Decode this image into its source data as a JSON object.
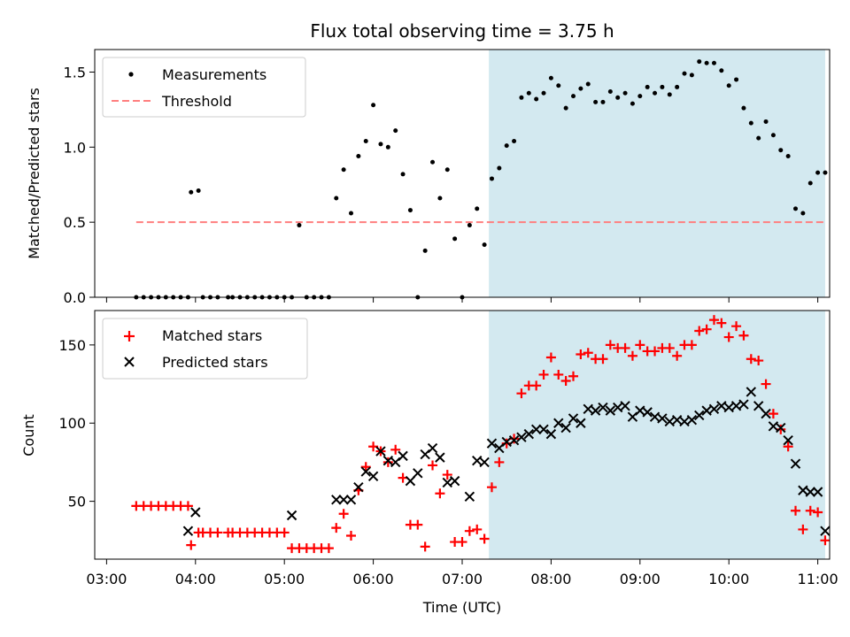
{
  "chart_data": [
    {
      "type": "scatter",
      "title": "Flux total observing time = 3.75 h",
      "xlabel": "",
      "ylabel": "Matched/Predicted stars",
      "ylim": [
        0,
        1.65
      ],
      "xlim": [
        "03:00",
        "11:30"
      ],
      "yticks": [
        "0.0",
        "0.5",
        "1.0",
        "1.5"
      ],
      "shaded_region": {
        "from": "07:18",
        "to": "11:05",
        "color": "#d3e9f0"
      },
      "legend": {
        "position": "top-left",
        "entries": [
          "Measurements",
          "Threshold"
        ]
      },
      "series": [
        {
          "name": "Measurements",
          "marker": "dot",
          "color": "#000000",
          "x": [
            "03:20",
            "03:25",
            "03:30",
            "03:35",
            "03:40",
            "03:45",
            "03:50",
            "03:55",
            "03:57",
            "04:02",
            "04:05",
            "04:10",
            "04:15",
            "04:22",
            "04:25",
            "04:30",
            "04:35",
            "04:40",
            "04:45",
            "04:50",
            "04:55",
            "05:00",
            "05:05",
            "05:10",
            "05:15",
            "05:20",
            "05:25",
            "05:30",
            "05:35",
            "05:40",
            "05:45",
            "05:50",
            "05:55",
            "06:00",
            "06:05",
            "06:10",
            "06:15",
            "06:20",
            "06:25",
            "06:30",
            "06:35",
            "06:40",
            "06:45",
            "06:50",
            "06:55",
            "07:00",
            "07:05",
            "07:10",
            "07:15",
            "07:20",
            "07:25",
            "07:30",
            "07:35",
            "07:40",
            "07:45",
            "07:50",
            "07:55",
            "08:00",
            "08:05",
            "08:10",
            "08:15",
            "08:20",
            "08:25",
            "08:30",
            "08:35",
            "08:40",
            "08:45",
            "08:50",
            "08:55",
            "09:00",
            "09:05",
            "09:10",
            "09:15",
            "09:20",
            "09:25",
            "09:30",
            "09:35",
            "09:40",
            "09:45",
            "09:50",
            "09:55",
            "10:00",
            "10:05",
            "10:10",
            "10:15",
            "10:20",
            "10:25",
            "10:30",
            "10:35",
            "10:40",
            "10:45",
            "10:50",
            "10:55",
            "11:00",
            "11:05"
          ],
          "y": [
            0.0,
            0.0,
            0.0,
            0.0,
            0.0,
            0.0,
            0.0,
            0.0,
            0.7,
            0.71,
            0.0,
            0.0,
            0.0,
            0.0,
            0.0,
            0.0,
            0.0,
            0.0,
            0.0,
            0.0,
            0.0,
            0.0,
            0.0,
            0.48,
            0.0,
            0.0,
            0.0,
            0.0,
            0.66,
            0.85,
            0.56,
            0.94,
            1.04,
            1.28,
            1.02,
            1.0,
            1.11,
            0.82,
            0.58,
            0.0,
            0.31,
            0.9,
            0.66,
            0.85,
            0.39,
            0.0,
            0.48,
            0.59,
            0.35,
            0.79,
            0.86,
            1.01,
            1.04,
            1.33,
            1.36,
            1.32,
            1.36,
            1.46,
            1.41,
            1.26,
            1.34,
            1.39,
            1.42,
            1.3,
            1.3,
            1.37,
            1.33,
            1.36,
            1.29,
            1.34,
            1.4,
            1.36,
            1.4,
            1.35,
            1.4,
            1.49,
            1.48,
            1.57,
            1.56,
            1.56,
            1.51,
            1.41,
            1.45,
            1.26,
            1.16,
            1.06,
            1.17,
            1.08,
            0.98,
            0.94,
            0.59,
            0.56,
            0.76,
            0.83,
            0.83
          ]
        },
        {
          "name": "Threshold",
          "marker": "dashed-line",
          "color": "#ff7f7f",
          "x": [
            "03:20",
            "11:05"
          ],
          "y": [
            0.5,
            0.5
          ]
        }
      ]
    },
    {
      "type": "scatter",
      "title": "",
      "xlabel": "Time (UTC)",
      "ylabel": "Count",
      "ylim": [
        13,
        172
      ],
      "xlim": [
        "03:00",
        "11:30"
      ],
      "xticks": [
        "03:00",
        "04:00",
        "05:00",
        "06:00",
        "07:00",
        "08:00",
        "09:00",
        "10:00",
        "11:00"
      ],
      "yticks": [
        "50",
        "100",
        "150"
      ],
      "shaded_region": {
        "from": "07:18",
        "to": "11:05",
        "color": "#d3e9f0"
      },
      "legend": {
        "position": "top-left",
        "entries": [
          "Matched stars",
          "Predicted stars"
        ]
      },
      "series": [
        {
          "name": "Matched stars",
          "marker": "plus",
          "color": "#ff0000",
          "x": [
            "03:20",
            "03:25",
            "03:30",
            "03:35",
            "03:40",
            "03:45",
            "03:50",
            "03:55",
            "03:57",
            "04:02",
            "04:05",
            "04:10",
            "04:15",
            "04:22",
            "04:25",
            "04:30",
            "04:35",
            "04:40",
            "04:45",
            "04:50",
            "04:55",
            "05:00",
            "05:05",
            "05:10",
            "05:15",
            "05:20",
            "05:25",
            "05:30",
            "05:35",
            "05:40",
            "05:45",
            "05:50",
            "05:55",
            "06:00",
            "06:05",
            "06:10",
            "06:15",
            "06:20",
            "06:25",
            "06:30",
            "06:35",
            "06:40",
            "06:45",
            "06:50",
            "06:55",
            "07:00",
            "07:05",
            "07:10",
            "07:15",
            "07:20",
            "07:25",
            "07:30",
            "07:35",
            "07:40",
            "07:45",
            "07:50",
            "07:55",
            "08:00",
            "08:05",
            "08:10",
            "08:15",
            "08:20",
            "08:25",
            "08:30",
            "08:35",
            "08:40",
            "08:45",
            "08:50",
            "08:55",
            "09:00",
            "09:05",
            "09:10",
            "09:15",
            "09:20",
            "09:25",
            "09:30",
            "09:35",
            "09:40",
            "09:45",
            "09:50",
            "09:55",
            "10:00",
            "10:05",
            "10:10",
            "10:15",
            "10:20",
            "10:25",
            "10:30",
            "10:35",
            "10:40",
            "10:45",
            "10:50",
            "10:55",
            "11:00",
            "11:05"
          ],
          "y": [
            47,
            47,
            47,
            47,
            47,
            47,
            47,
            47,
            22,
            30,
            30,
            30,
            30,
            30,
            30,
            30,
            30,
            30,
            30,
            30,
            30,
            30,
            20,
            20,
            20,
            20,
            20,
            20,
            33,
            42,
            28,
            57,
            72,
            85,
            82,
            75,
            83,
            65,
            35,
            35,
            21,
            73,
            55,
            67,
            24,
            24,
            31,
            32,
            26,
            59,
            75,
            87,
            90,
            119,
            124,
            124,
            131,
            142,
            131,
            127,
            130,
            144,
            145,
            141,
            141,
            150,
            148,
            148,
            143,
            150,
            146,
            146,
            148,
            148,
            143,
            150,
            150,
            159,
            160,
            166,
            164,
            155,
            162,
            156,
            141,
            140,
            125,
            106,
            96,
            85,
            44,
            32,
            44,
            43,
            25
          ]
        },
        {
          "name": "Predicted stars",
          "marker": "x",
          "color": "#000000",
          "x": [
            "03:55",
            "04:00",
            "05:05",
            "05:35",
            "05:40",
            "05:45",
            "05:50",
            "05:55",
            "06:00",
            "06:05",
            "06:10",
            "06:15",
            "06:20",
            "06:25",
            "06:30",
            "06:35",
            "06:40",
            "06:45",
            "06:50",
            "06:55",
            "07:05",
            "07:10",
            "07:15",
            "07:20",
            "07:25",
            "07:30",
            "07:35",
            "07:40",
            "07:45",
            "07:50",
            "07:55",
            "08:00",
            "08:05",
            "08:10",
            "08:15",
            "08:20",
            "08:25",
            "08:30",
            "08:35",
            "08:40",
            "08:45",
            "08:50",
            "08:55",
            "09:00",
            "09:05",
            "09:10",
            "09:15",
            "09:20",
            "09:25",
            "09:30",
            "09:35",
            "09:40",
            "09:45",
            "09:50",
            "09:55",
            "10:00",
            "10:05",
            "10:10",
            "10:15",
            "10:20",
            "10:25",
            "10:30",
            "10:35",
            "10:40",
            "10:45",
            "10:50",
            "10:55",
            "11:00",
            "11:05"
          ],
          "y": [
            31,
            43,
            41,
            51,
            51,
            51,
            59,
            69,
            66,
            82,
            76,
            75,
            79,
            63,
            68,
            80,
            84,
            78,
            62,
            63,
            53,
            76,
            75,
            87,
            84,
            88,
            89,
            91,
            93,
            96,
            96,
            93,
            100,
            97,
            103,
            100,
            109,
            108,
            110,
            108,
            110,
            111,
            104,
            108,
            107,
            104,
            103,
            101,
            102,
            101,
            102,
            105,
            108,
            109,
            111,
            110,
            111,
            112,
            120,
            111,
            106,
            98,
            97,
            89,
            74,
            57,
            56,
            56,
            31
          ]
        }
      ]
    }
  ]
}
